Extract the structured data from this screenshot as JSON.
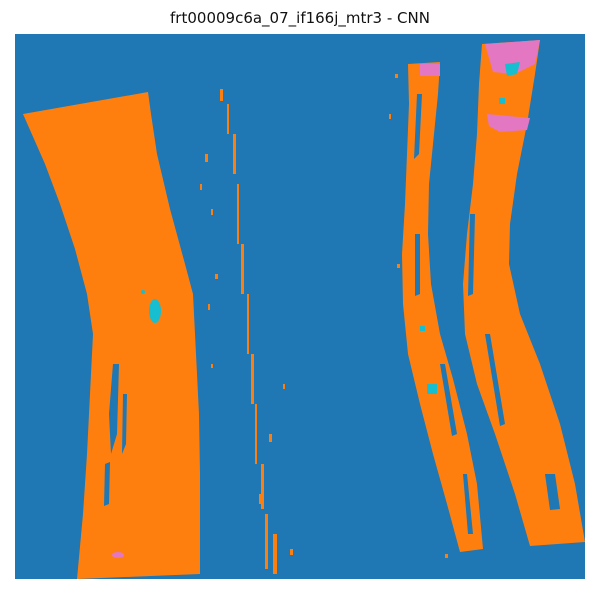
{
  "figure": {
    "title": "frt00009c6a_07_if166j_mtr3 - CNN"
  },
  "image": {
    "kind": "classification map",
    "colors": {
      "background": "#1f77b4",
      "primary_class": "#ff7f0e",
      "secondary_class": "#17becf",
      "tertiary_class": "#e377c2"
    }
  }
}
